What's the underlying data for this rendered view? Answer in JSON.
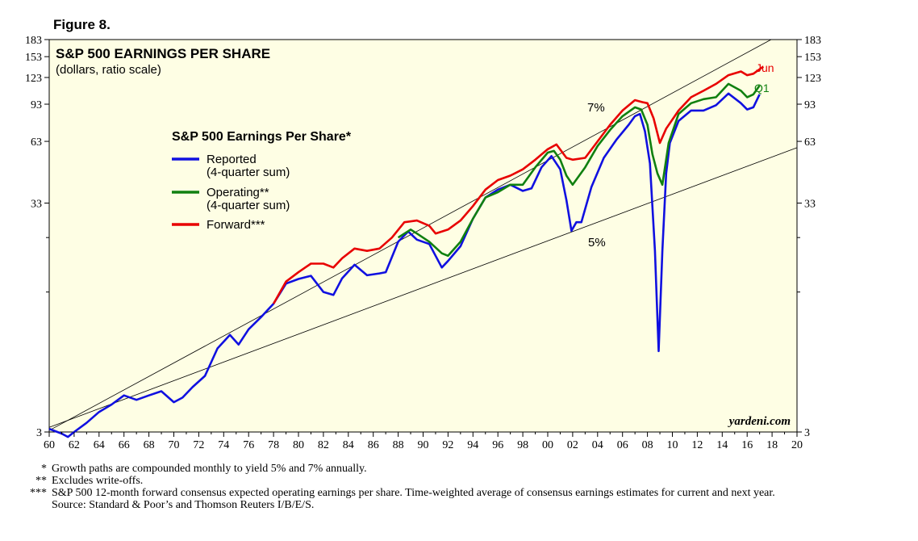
{
  "figure_label": "Figure 8.",
  "chart_data": {
    "type": "line",
    "title": "S&P 500 EARNINGS PER SHARE",
    "subtitle": "(dollars, ratio scale)",
    "y_scale": "log",
    "ylim": [
      3,
      183
    ],
    "y_ticks": [
      3,
      33,
      63,
      93,
      123,
      153,
      183
    ],
    "y_tick_labels": [
      "3",
      "33",
      "63",
      "93",
      "123",
      "153",
      "183"
    ],
    "x_range": [
      1960,
      2020
    ],
    "x_ticks": [
      1960,
      1962,
      1964,
      1966,
      1968,
      1970,
      1972,
      1974,
      1976,
      1978,
      1980,
      1982,
      1984,
      1986,
      1988,
      1990,
      1992,
      1994,
      1996,
      1998,
      2000,
      2002,
      2004,
      2006,
      2008,
      2010,
      2012,
      2014,
      2016,
      2018,
      2020
    ],
    "x_tick_labels": [
      "60",
      "62",
      "64",
      "66",
      "68",
      "70",
      "72",
      "74",
      "76",
      "78",
      "80",
      "82",
      "84",
      "86",
      "88",
      "90",
      "92",
      "94",
      "96",
      "98",
      "00",
      "02",
      "04",
      "06",
      "08",
      "10",
      "12",
      "14",
      "16",
      "18",
      "20"
    ],
    "legend": {
      "title": "S&P 500 Earnings Per Share*",
      "position": "upper-left",
      "items": [
        {
          "label": "Reported",
          "sublabel": "(4-quarter sum)",
          "color": "#1010e0"
        },
        {
          "label": "Operating**",
          "sublabel": "(4-quarter sum)",
          "color": "#108010"
        },
        {
          "label": "Forward***",
          "sublabel": "",
          "color": "#e80000"
        }
      ]
    },
    "series": [
      {
        "name": "Reported",
        "color": "#1010e0",
        "end_label": "",
        "x": [
          1960.0,
          1961.0,
          1961.5,
          1962.0,
          1963.0,
          1964.0,
          1965.0,
          1966.0,
          1967.0,
          1968.0,
          1969.0,
          1970.0,
          1970.7,
          1971.5,
          1972.5,
          1973.5,
          1974.5,
          1975.2,
          1976.0,
          1977.0,
          1978.0,
          1979.0,
          1980.0,
          1981.0,
          1982.0,
          1982.8,
          1983.5,
          1984.5,
          1985.5,
          1986.5,
          1987.0,
          1988.0,
          1988.8,
          1989.5,
          1990.5,
          1991.5,
          1992.0,
          1993.0,
          1994.0,
          1995.0,
          1996.0,
          1997.0,
          1998.0,
          1998.7,
          1999.5,
          2000.3,
          2001.0,
          2001.5,
          2001.9,
          2002.3,
          2002.7,
          2003.5,
          2004.5,
          2005.5,
          2006.5,
          2007.0,
          2007.4,
          2007.8,
          2008.2,
          2008.6,
          2008.9,
          2009.2,
          2009.5,
          2009.8,
          2010.5,
          2011.5,
          2012.5,
          2013.5,
          2014.5,
          2015.5,
          2016.0,
          2016.5,
          2017.0
        ],
        "y": [
          3.1,
          2.95,
          2.85,
          3.0,
          3.3,
          3.7,
          4.0,
          4.4,
          4.2,
          4.4,
          4.6,
          4.1,
          4.3,
          4.8,
          5.4,
          7.2,
          8.3,
          7.5,
          8.8,
          10.0,
          11.5,
          14.2,
          14.9,
          15.4,
          13.0,
          12.6,
          15.0,
          17.3,
          15.5,
          15.8,
          16.0,
          22.0,
          24.5,
          22.5,
          21.5,
          16.8,
          18.0,
          21.0,
          28.0,
          35.0,
          38.0,
          40.0,
          37.5,
          38.5,
          48.0,
          54.0,
          47.0,
          34.0,
          24.7,
          27.0,
          27.0,
          39.0,
          53.0,
          64.0,
          75.0,
          82.0,
          84.0,
          70.0,
          50.0,
          20.0,
          7.0,
          20.0,
          45.0,
          62.0,
          78.0,
          87.0,
          87.0,
          92.0,
          104.0,
          94.0,
          88.0,
          90.0,
          103.0
        ]
      },
      {
        "name": "Operating**",
        "color": "#108010",
        "end_label": "Q1",
        "x": [
          1988.0,
          1989.0,
          1989.5,
          1990.5,
          1991.5,
          1992.0,
          1993.0,
          1994.0,
          1995.0,
          1996.0,
          1997.0,
          1998.0,
          1999.0,
          2000.0,
          2000.5,
          2001.0,
          2001.5,
          2002.0,
          2003.0,
          2004.0,
          2005.0,
          2006.0,
          2007.0,
          2007.5,
          2008.0,
          2008.4,
          2008.8,
          2009.2,
          2009.7,
          2010.5,
          2011.5,
          2012.5,
          2013.5,
          2014.5,
          2015.5,
          2016.0,
          2016.5,
          2017.0
        ],
        "y": [
          23.0,
          25.0,
          24.0,
          22.0,
          19.5,
          19.0,
          22.0,
          28.0,
          35.0,
          37.0,
          40.0,
          40.0,
          48.0,
          56.0,
          57.0,
          52.0,
          44.0,
          40.0,
          48.0,
          60.0,
          71.0,
          82.0,
          90.0,
          88.0,
          75.0,
          55.0,
          45.0,
          40.0,
          62.0,
          84.0,
          94.0,
          98.0,
          100.0,
          115.0,
          107.0,
          100.0,
          103.0,
          113.0
        ]
      },
      {
        "name": "Forward***",
        "color": "#e80000",
        "end_label": "Jun",
        "x": [
          1978.0,
          1979.0,
          1980.0,
          1981.0,
          1982.0,
          1982.8,
          1983.5,
          1984.5,
          1985.5,
          1986.5,
          1987.5,
          1988.5,
          1989.5,
          1990.5,
          1991.0,
          1992.0,
          1993.0,
          1994.0,
          1995.0,
          1996.0,
          1997.0,
          1998.0,
          1999.0,
          2000.0,
          2000.7,
          2001.5,
          2002.0,
          2003.0,
          2004.0,
          2005.0,
          2006.0,
          2007.0,
          2007.6,
          2008.0,
          2008.5,
          2009.0,
          2009.5,
          2010.5,
          2011.5,
          2012.5,
          2013.5,
          2014.5,
          2015.5,
          2016.0,
          2016.5,
          2017.3
        ],
        "y": [
          11.5,
          14.5,
          16.0,
          17.5,
          17.5,
          16.8,
          18.5,
          20.5,
          20.0,
          20.5,
          23.0,
          27.0,
          27.5,
          26.0,
          24.0,
          25.0,
          27.5,
          32.0,
          38.0,
          42.0,
          44.0,
          47.0,
          52.0,
          58.0,
          61.0,
          53.0,
          52.0,
          53.0,
          63.0,
          75.0,
          87.0,
          97.0,
          95.0,
          94.0,
          80.0,
          62.0,
          72.0,
          87.0,
          100.0,
          107.0,
          115.0,
          126.0,
          131.0,
          126.0,
          128.0,
          138.0
        ]
      }
    ],
    "growth_paths": [
      {
        "label": "7%",
        "x": [
          1960,
          2018
        ],
        "y": [
          3.05,
          184.0
        ]
      },
      {
        "label": "5%",
        "x": [
          1960,
          2020
        ],
        "y": [
          3.15,
          59.0
        ]
      }
    ],
    "watermark": "yardeni.com"
  },
  "footnotes": [
    {
      "mark": "*",
      "text": "Growth paths are compounded monthly to yield 5% and 7% annually."
    },
    {
      "mark": "**",
      "text": "Excludes write-offs."
    },
    {
      "mark": "***",
      "text": "S&P 500 12-month forward consensus expected operating earnings per share. Time-weighted average of consensus earnings estimates for current and next year."
    },
    {
      "mark": "",
      "text": "Source: Standard & Poor’s and Thomson Reuters I/B/E/S."
    }
  ]
}
